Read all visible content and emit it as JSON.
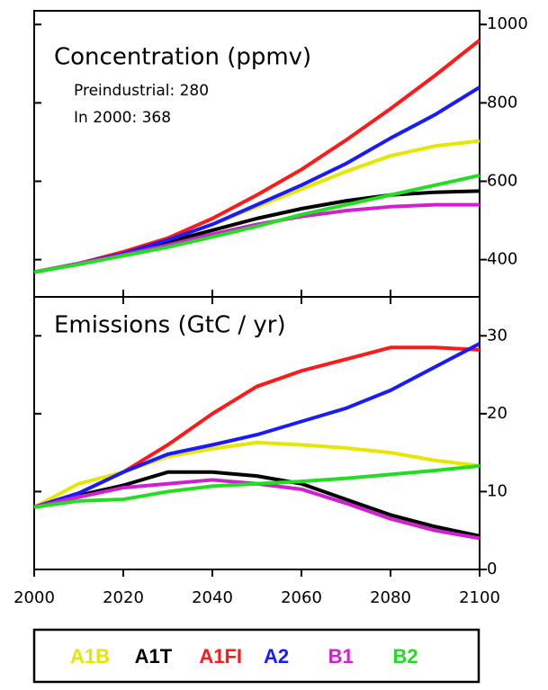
{
  "chart_data": [
    {
      "type": "line",
      "title": "Concentration (ppmv)",
      "annotations": [
        "Preindustrial: 280",
        "In 2000: 368"
      ],
      "x": [
        2000,
        2010,
        2020,
        2030,
        2040,
        2050,
        2060,
        2070,
        2080,
        2090,
        2100
      ],
      "xlim": [
        2000,
        2100
      ],
      "ylim": [
        305,
        1035
      ],
      "yticks": [
        400,
        600,
        800,
        1000
      ],
      "series": [
        {
          "name": "A1B",
          "color": "#e6e600",
          "values": [
            368,
            390,
            415,
            450,
            490,
            535,
            580,
            625,
            665,
            690,
            703
          ]
        },
        {
          "name": "A1T",
          "color": "#000000",
          "values": [
            368,
            390,
            415,
            445,
            475,
            505,
            530,
            550,
            565,
            572,
            575
          ]
        },
        {
          "name": "A1FI",
          "color": "#ff1a1a",
          "values": [
            368,
            390,
            420,
            455,
            505,
            565,
            630,
            705,
            785,
            870,
            960
          ]
        },
        {
          "name": "A2",
          "color": "#1a1aff",
          "values": [
            368,
            390,
            415,
            450,
            490,
            540,
            590,
            645,
            710,
            770,
            840
          ]
        },
        {
          "name": "B1",
          "color": "#d020d0",
          "values": [
            368,
            390,
            412,
            437,
            465,
            490,
            510,
            525,
            535,
            540,
            540
          ]
        },
        {
          "name": "B2",
          "color": "#22dd22",
          "values": [
            368,
            388,
            410,
            432,
            458,
            485,
            515,
            540,
            565,
            590,
            615
          ]
        }
      ]
    },
    {
      "type": "line",
      "title": "Emissions (GtC / yr)",
      "x": [
        2000,
        2010,
        2020,
        2030,
        2040,
        2050,
        2060,
        2070,
        2080,
        2090,
        2100
      ],
      "xlim": [
        2000,
        2100
      ],
      "xticks": [
        2000,
        2020,
        2040,
        2060,
        2080,
        2100
      ],
      "ylim": [
        0,
        35
      ],
      "yticks": [
        0,
        10,
        20,
        30
      ],
      "series": [
        {
          "color": "#e6e600",
          "values": [
            8,
            11,
            12.5,
            14.5,
            15.5,
            16.3,
            16,
            15.6,
            15,
            14,
            13.3
          ]
        },
        {
          "color": "#000000",
          "values": [
            8,
            9.5,
            10.8,
            12.5,
            12.5,
            12,
            11,
            9,
            7,
            5.5,
            4.3
          ]
        },
        {
          "color": "#ff1a1a",
          "values": [
            8,
            9.8,
            12.5,
            16,
            20,
            23.5,
            25.5,
            27,
            28.5,
            28.5,
            28.2
          ]
        },
        {
          "color": "#1a1aff",
          "values": [
            8,
            9.8,
            12.5,
            14.8,
            16,
            17.3,
            19,
            20.7,
            23,
            26,
            29
          ]
        },
        {
          "color": "#d020d0",
          "values": [
            8,
            9.3,
            10.5,
            11,
            11.5,
            11,
            10.3,
            8.5,
            6.5,
            5,
            4
          ]
        },
        {
          "color": "#22dd22",
          "values": [
            8,
            8.8,
            9,
            10,
            10.7,
            11,
            11.3,
            11.7,
            12.2,
            12.7,
            13.3
          ]
        }
      ]
    }
  ]
}
